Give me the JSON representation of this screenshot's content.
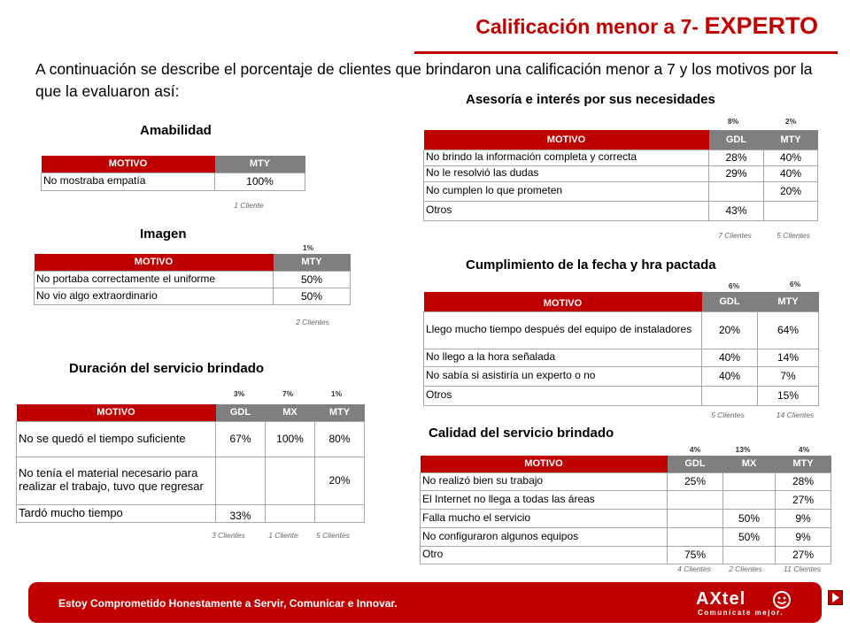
{
  "header": {
    "title_main": "Calificación menor a 7-",
    "title_emph": "EXPERTO",
    "intro": "A continuación se describe el porcentaje de clientes que brindaron una calificación menor a 7 y los motivos por la que la evaluaron así:"
  },
  "amabilidad": {
    "title": "Amabilidad",
    "headers": [
      "MOTIVO",
      "MTY"
    ],
    "rows": [
      {
        "motivo": "No mostraba empatía",
        "mty": "100%"
      }
    ],
    "footer": [
      "1 Cliente"
    ]
  },
  "imagen": {
    "title": "Imagen",
    "percents": [
      "1%"
    ],
    "headers": [
      "MOTIVO",
      "MTY"
    ],
    "rows": [
      {
        "motivo": "No portaba correctamente el uniforme",
        "mty": "50%"
      },
      {
        "motivo": "No vio algo extraordinario",
        "mty": "50%"
      }
    ],
    "footer": [
      "2 Clientes"
    ]
  },
  "duracion": {
    "title": "Duración del servicio brindado",
    "percents": [
      "3%",
      "7%",
      "1%"
    ],
    "headers": [
      "MOTIVO",
      "GDL",
      "MX",
      "MTY"
    ],
    "rows": [
      {
        "motivo": "No se quedó el tiempo suficiente",
        "gdl": "67%",
        "mx": "100%",
        "mty": "80%"
      },
      {
        "motivo": "No tenía el material necesario para realizar el trabajo, tuvo que regresar",
        "gdl": "",
        "mx": "",
        "mty": "20%"
      },
      {
        "motivo": "Tardó mucho tiempo",
        "gdl": "33%",
        "mx": "",
        "mty": ""
      }
    ],
    "footer": [
      "3 Clientes",
      "1 Cliente",
      "5 Clientes"
    ]
  },
  "asesoria": {
    "title": "Asesoría e interés por sus necesidades",
    "percents": [
      "8%",
      "2%"
    ],
    "headers": [
      "MOTIVO",
      "GDL",
      "MTY"
    ],
    "rows": [
      {
        "motivo": "No brindo la información completa y correcta",
        "gdl": "28%",
        "mty": "40%"
      },
      {
        "motivo": "No le resolvió las dudas",
        "gdl": "29%",
        "mty": "40%"
      },
      {
        "motivo": "No cumplen lo que prometen",
        "gdl": "",
        "mty": "20%"
      },
      {
        "motivo": "Otros",
        "gdl": "43%",
        "mty": ""
      }
    ],
    "footer": [
      "7 Clientes",
      "5 Clientes"
    ]
  },
  "cumplimiento": {
    "title": "Cumplimiento de la fecha y hra pactada",
    "percents": [
      "6%",
      "6%"
    ],
    "headers": [
      "MOTIVO",
      "GDL",
      "MTY"
    ],
    "rows": [
      {
        "motivo": "Llego mucho tiempo después del equipo de instaladores",
        "gdl": "20%",
        "mty": "64%"
      },
      {
        "motivo": "No llego a la hora señalada",
        "gdl": "40%",
        "mty": "14%"
      },
      {
        "motivo": "No sabía si asistiría un experto o no",
        "gdl": "40%",
        "mty": "7%"
      },
      {
        "motivo": "Otros",
        "gdl": "",
        "mty": "15%"
      }
    ],
    "footer": [
      "5 Clientes",
      "14 Clientes"
    ]
  },
  "calidad": {
    "title": "Calidad del servicio brindado",
    "percents": [
      "4%",
      "13%",
      "4%"
    ],
    "headers": [
      "MOTIVO",
      "GDL",
      "MX",
      "MTY"
    ],
    "rows": [
      {
        "motivo": "No realizó bien su trabajo",
        "gdl": "25%",
        "mx": "",
        "mty": "28%"
      },
      {
        "motivo": "El Internet no llega a todas las áreas",
        "gdl": "",
        "mx": "",
        "mty": "27%"
      },
      {
        "motivo": "Falla mucho el servicio",
        "gdl": "",
        "mx": "50%",
        "mty": "9%"
      },
      {
        "motivo": "No configuraron algunos equipos",
        "gdl": "",
        "mx": "50%",
        "mty": "9%"
      },
      {
        "motivo": "Otro",
        "gdl": "75%",
        "mx": "",
        "mty": "27%"
      }
    ],
    "footer": [
      "4 Clientes",
      "2 Clientes",
      "11 Clientes"
    ]
  },
  "footer": {
    "slogan": "Estoy Comprometido Honestamente a Servir, Comunicar e Innovar.",
    "logo_text": "AXtel",
    "logo_tagline": "Comunícate mejor.",
    "logo_icon": "smiley-person-icon",
    "next_icon": "play-next-icon"
  },
  "colors": {
    "brand_red": "#c00000",
    "header_gray": "#7f7f7f",
    "border": "#a6a6a6"
  }
}
